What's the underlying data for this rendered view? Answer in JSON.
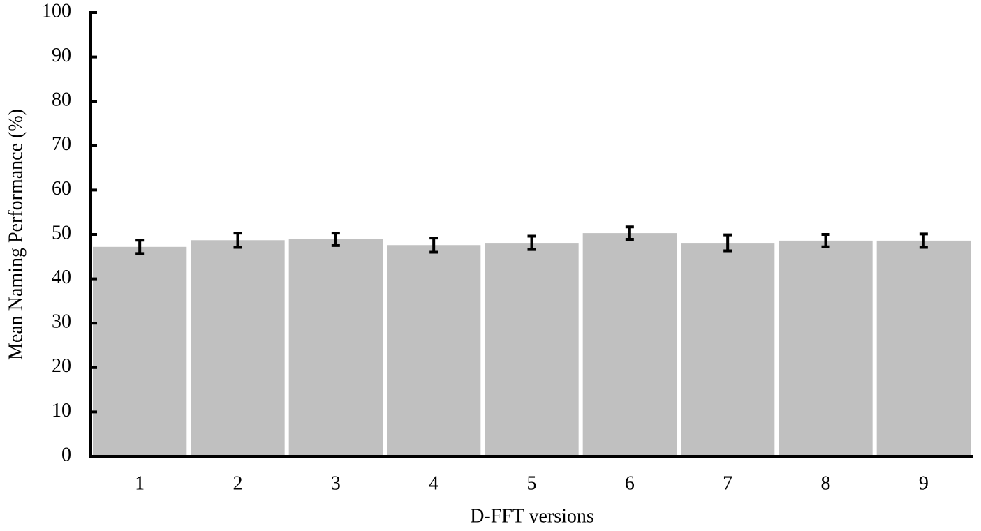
{
  "chart_data": {
    "type": "bar",
    "categories": [
      "1",
      "2",
      "3",
      "4",
      "5",
      "6",
      "7",
      "8",
      "9"
    ],
    "values": [
      47.2,
      48.7,
      48.9,
      47.6,
      48.1,
      50.3,
      48.1,
      48.6,
      48.6
    ],
    "errors": [
      1.5,
      1.6,
      1.4,
      1.6,
      1.5,
      1.4,
      1.8,
      1.4,
      1.5
    ],
    "color": "#c0c0c0",
    "xlabel": "D-FFT versions",
    "ylabel": "Mean Naming Performance (%)",
    "ylim": [
      0,
      100
    ],
    "yticks": [
      0,
      10,
      20,
      30,
      40,
      50,
      60,
      70,
      80,
      90,
      100
    ],
    "grid": false
  }
}
